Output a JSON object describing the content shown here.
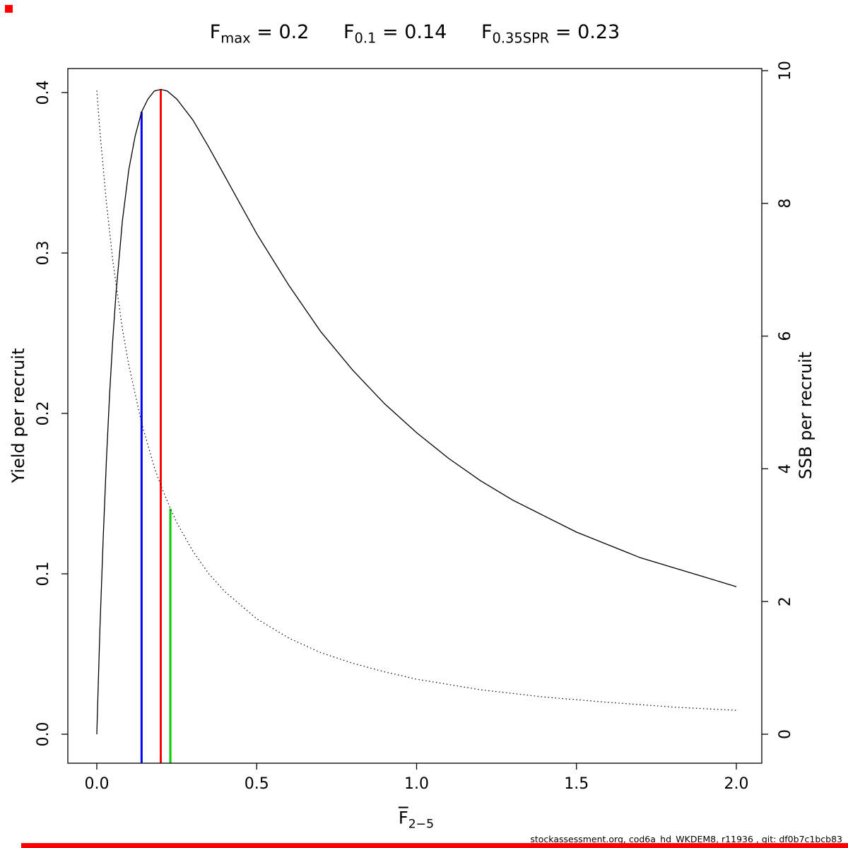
{
  "chart_data": {
    "type": "line",
    "title_terms": [
      {
        "base": "F",
        "sub": "max",
        "rest": " = 0.2"
      },
      {
        "base": "F",
        "sub": "0.1",
        "rest": " = 0.14"
      },
      {
        "base": "F",
        "sub": "0.35SPR",
        "rest": " = 0.23"
      }
    ],
    "x_axis": {
      "label_base": "F",
      "label_sub": "2−5",
      "ticks": [
        0,
        0.5,
        1,
        1.5,
        2
      ],
      "tick_labels": [
        "0.0",
        "0.5",
        "1.0",
        "1.5",
        "2.0"
      ],
      "range": [
        0,
        2
      ]
    },
    "y_left": {
      "label": "Yield per recruit",
      "ticks": [
        0,
        0.1,
        0.2,
        0.3,
        0.4
      ],
      "tick_labels": [
        "0.0",
        "0.1",
        "0.2",
        "0.3",
        "0.4"
      ],
      "range": [
        0,
        0.4
      ]
    },
    "y_right": {
      "label": "SSB per recruit",
      "ticks": [
        0,
        2,
        4,
        6,
        8,
        10
      ],
      "tick_labels": [
        "0",
        "2",
        "4",
        "6",
        "8",
        "10"
      ],
      "range": [
        0,
        10
      ]
    },
    "series": [
      {
        "name": "yield-per-recruit",
        "axis": "left",
        "line_style": "solid",
        "color": "#000000",
        "x": [
          0,
          0.005,
          0.01,
          0.02,
          0.03,
          0.04,
          0.05,
          0.06,
          0.08,
          0.1,
          0.12,
          0.14,
          0.16,
          0.18,
          0.2,
          0.22,
          0.25,
          0.3,
          0.35,
          0.4,
          0.45,
          0.5,
          0.6,
          0.7,
          0.8,
          0.9,
          1.0,
          1.1,
          1.2,
          1.3,
          1.4,
          1.5,
          1.6,
          1.7,
          1.8,
          1.9,
          2.0
        ],
        "y": [
          0,
          0.035,
          0.067,
          0.123,
          0.171,
          0.212,
          0.246,
          0.275,
          0.32,
          0.352,
          0.373,
          0.388,
          0.396,
          0.401,
          0.402,
          0.401,
          0.396,
          0.383,
          0.366,
          0.348,
          0.33,
          0.312,
          0.28,
          0.251,
          0.227,
          0.206,
          0.188,
          0.172,
          0.158,
          0.146,
          0.136,
          0.126,
          0.118,
          0.11,
          0.104,
          0.098,
          0.092
        ]
      },
      {
        "name": "ssb-per-recruit",
        "axis": "right",
        "line_style": "dotted",
        "color": "#000000",
        "x": [
          0,
          0.01,
          0.03,
          0.05,
          0.08,
          0.1,
          0.14,
          0.18,
          0.2,
          0.23,
          0.25,
          0.3,
          0.35,
          0.4,
          0.5,
          0.6,
          0.7,
          0.8,
          0.9,
          1.0,
          1.2,
          1.4,
          1.6,
          1.8,
          2.0
        ],
        "y": [
          9.7,
          9.07,
          8.01,
          7.14,
          6.11,
          5.56,
          4.69,
          4.02,
          3.75,
          3.4,
          3.19,
          2.76,
          2.42,
          2.15,
          1.74,
          1.45,
          1.23,
          1.07,
          0.94,
          0.83,
          0.67,
          0.56,
          0.48,
          0.41,
          0.36
        ]
      }
    ],
    "ref_lines": [
      {
        "name": "F0.1",
        "x": 0.14,
        "top_value": 0.388,
        "axis": "left",
        "color": "#0000ff"
      },
      {
        "name": "Fmax",
        "x": 0.2,
        "top_value": 0.402,
        "axis": "left",
        "color": "#ff0000"
      },
      {
        "name": "F0.35SPR",
        "x": 0.23,
        "top_value": 3.4,
        "axis": "right",
        "color": "#00cc00"
      }
    ],
    "grid": false,
    "legend": "none"
  },
  "footer": "stockassessment.org, cod6a_hd_WKDEM8, r11936 , git: df0b7c1bcb83",
  "markers": {
    "color": "#ff0000"
  }
}
